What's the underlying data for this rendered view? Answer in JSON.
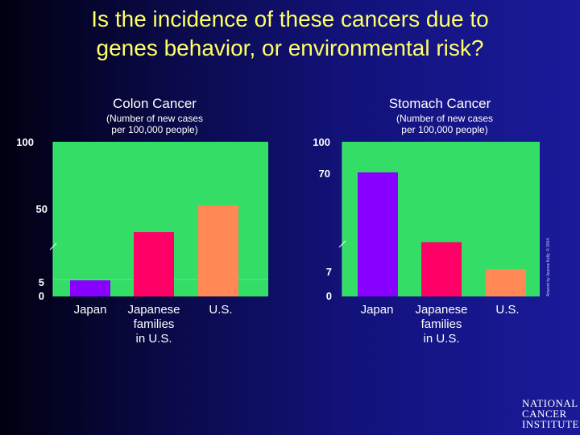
{
  "header": {
    "title_line1": "Is the incidence of these cancers due to",
    "title_line2": "genes behavior, or environmental risk?"
  },
  "colors": {
    "title": "#ffff66",
    "plot_bg": "#33dd66",
    "japan": "#8800ff",
    "japanese_families": "#ff0066",
    "us": "#ff8855"
  },
  "chart_data": [
    {
      "type": "bar",
      "title": "Colon Cancer",
      "subtitle_line1": "(Number of new cases",
      "subtitle_line2": "per 100,000 people)",
      "categories": [
        {
          "lines": [
            "Japan"
          ]
        },
        {
          "lines": [
            "Japanese",
            "families",
            "in U.S."
          ]
        },
        {
          "lines": [
            "U.S."
          ]
        }
      ],
      "values": [
        5,
        34,
        50
      ],
      "ytick_labels": [
        "100",
        "50",
        "5",
        "0"
      ],
      "ylim": [
        0,
        100
      ],
      "axis_break": true
    },
    {
      "type": "bar",
      "title": "Stomach Cancer",
      "subtitle_line1": "(Number of new cases",
      "subtitle_line2": "per 100,000 people)",
      "categories": [
        {
          "lines": [
            "Japan"
          ]
        },
        {
          "lines": [
            "Japanese",
            "families",
            "in U.S."
          ]
        },
        {
          "lines": [
            "U.S."
          ]
        }
      ],
      "values": [
        70,
        26,
        9
      ],
      "ytick_labels": [
        "100",
        "70",
        "7",
        "0"
      ],
      "ylim": [
        0,
        100
      ],
      "axis_break": true
    }
  ],
  "credit": "Artwork by Jeanne Kelly. © 2004.",
  "logo": {
    "line1": "NATIONAL",
    "line2": "CANCER",
    "line3": "INSTITUTE"
  }
}
